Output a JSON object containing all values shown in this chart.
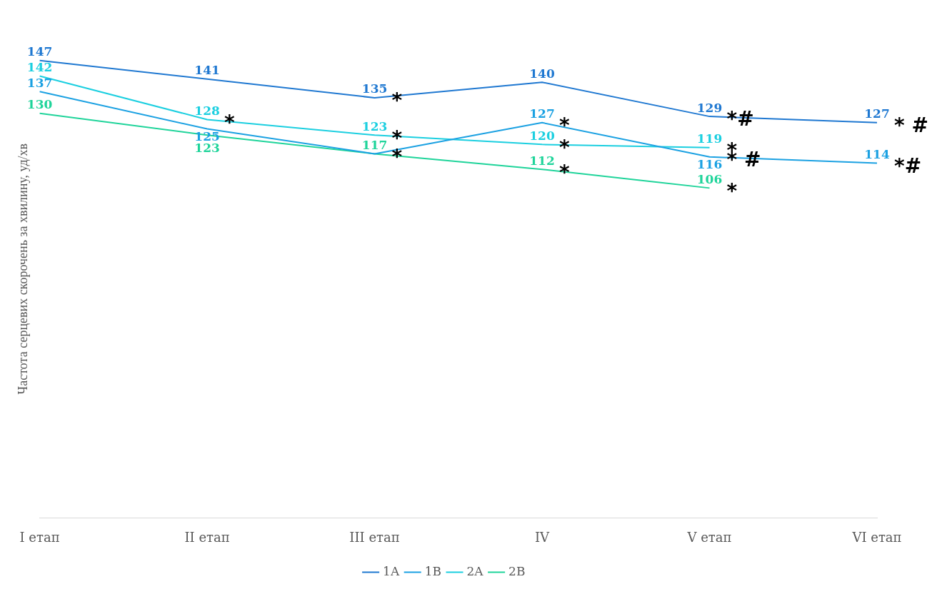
{
  "chart_data": {
    "type": "line",
    "ylabel": "Частота серцевих скорочень за хвилину, уд/хв",
    "categories": [
      "I етап",
      "II етап",
      "III етап",
      "IV",
      "V етап",
      "VI етап"
    ],
    "series": [
      {
        "name": "1A",
        "color": "#1f78d1",
        "values": [
          147,
          141,
          135,
          140,
          129,
          127
        ],
        "value_labels": [
          "147",
          "141",
          "135",
          "140",
          "129",
          "127"
        ]
      },
      {
        "name": "1B",
        "color": "#1ba1e2",
        "values": [
          137,
          125,
          117,
          127,
          116,
          114
        ],
        "value_labels": [
          "137",
          "125",
          null,
          "127",
          "116",
          "114"
        ]
      },
      {
        "name": "2A",
        "color": "#1bcfe0",
        "values": [
          142,
          128,
          123,
          120,
          119,
          null
        ],
        "value_labels": [
          "142",
          "128",
          "123",
          "120",
          "119",
          null
        ]
      },
      {
        "name": "2B",
        "color": "#1fd49a",
        "values": [
          130,
          123,
          117,
          112,
          106,
          null
        ],
        "value_labels": [
          "130",
          "123",
          "117",
          "112",
          "106",
          null
        ]
      }
    ],
    "legend": "bottom",
    "grid": false,
    "marker": "none",
    "line_style": "solid",
    "tick_labels": "x",
    "annotations": [
      {
        "text": "*",
        "x": "II етап",
        "y": 128
      },
      {
        "text": "*",
        "x": "III етап",
        "y": 135
      },
      {
        "text": "*",
        "x": "III етап",
        "y": 123
      },
      {
        "text": "*",
        "x": "III етап",
        "y": 117
      },
      {
        "text": "*",
        "x": "IV",
        "y": 127
      },
      {
        "text": "*",
        "x": "IV",
        "y": 120
      },
      {
        "text": "*",
        "x": "IV",
        "y": 112
      },
      {
        "text": "*#",
        "x": "V етап",
        "y": 129
      },
      {
        "text": "*",
        "x": "V етап",
        "y": 119
      },
      {
        "text": "* #",
        "x": "V етап",
        "y": 116
      },
      {
        "text": "*",
        "x": "V етап",
        "y": 106
      },
      {
        "text": "* #",
        "x": "VI етап",
        "y": 127
      },
      {
        "text": "*#",
        "x": "VI етап",
        "y": 114
      }
    ]
  }
}
